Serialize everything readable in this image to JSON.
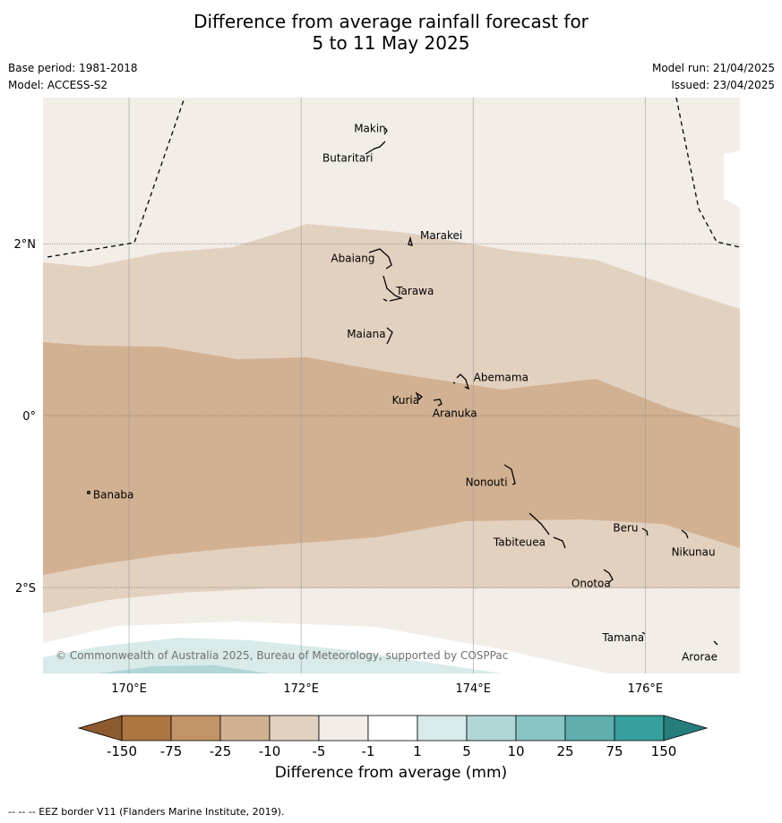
{
  "title": {
    "line1": "Difference from average rainfall forecast for",
    "line2": "5 to 11 May 2025"
  },
  "meta": {
    "base_period": "Base period: 1981-2018",
    "model": "Model: ACCESS-S2",
    "model_run": "Model run: 21/04/2025",
    "issued": "Issued: 23/04/2025"
  },
  "map": {
    "lon_range": [
      169.0,
      177.1
    ],
    "lat_range": [
      -3.0,
      3.7
    ],
    "lat_ticks": [
      {
        "value": 2,
        "label": "2°N"
      },
      {
        "value": 0,
        "label": "0°"
      },
      {
        "value": -2,
        "label": "2°S"
      }
    ],
    "lon_ticks": [
      {
        "value": 170,
        "label": "170°E"
      },
      {
        "value": 172,
        "label": "172°E"
      },
      {
        "value": 174,
        "label": "174°E"
      },
      {
        "value": 176,
        "label": "176°E"
      }
    ],
    "copyright": "© Commonwealth of Australia 2025, Bureau of Meteorology, supported by COSPPac",
    "places": [
      {
        "name": "Makin",
        "lon": 173.0,
        "lat": 3.35
      },
      {
        "name": "Butaritari",
        "lon": 172.8,
        "lat": 3.05
      },
      {
        "name": "Marakei",
        "lon": 173.3,
        "lat": 2.0
      },
      {
        "name": "Abaiang",
        "lon": 172.95,
        "lat": 1.8
      },
      {
        "name": "Tarawa",
        "lon": 173.0,
        "lat": 1.45
      },
      {
        "name": "Maiana",
        "lon": 173.0,
        "lat": 0.95
      },
      {
        "name": "Abemama",
        "lon": 173.9,
        "lat": 0.4
      },
      {
        "name": "Kuria",
        "lon": 173.4,
        "lat": 0.23
      },
      {
        "name": "Aranuka",
        "lon": 173.6,
        "lat": 0.15
      },
      {
        "name": "Banaba",
        "lon": 169.53,
        "lat": -0.86
      },
      {
        "name": "Nonouti",
        "lon": 174.4,
        "lat": -0.7
      },
      {
        "name": "Tabiteuea",
        "lon": 174.85,
        "lat": -1.35
      },
      {
        "name": "Beru",
        "lon": 176.0,
        "lat": -1.33
      },
      {
        "name": "Nikunau",
        "lon": 176.45,
        "lat": -1.35
      },
      {
        "name": "Onotoa",
        "lon": 175.6,
        "lat": -1.85
      },
      {
        "name": "Tamana",
        "lon": 175.98,
        "lat": -2.5
      },
      {
        "name": "Arorae",
        "lon": 176.82,
        "lat": -2.63
      }
    ]
  },
  "colorbar": {
    "title": "Difference from average (mm)",
    "ticks": [
      "-150",
      "-75",
      "-25",
      "-10",
      "-5",
      "-1",
      "1",
      "5",
      "10",
      "25",
      "75",
      "150"
    ],
    "colors": [
      "#8c5a2e",
      "#ad7541",
      "#c29467",
      "#d2b192",
      "#e3d1c0",
      "#f3ede8",
      "#ffffff",
      "#d8eaea",
      "#b0d6d6",
      "#88c4c3",
      "#5eafae",
      "#36a09d",
      "#267e7c"
    ],
    "over_color": "#267e7c",
    "under_color": "#8c5a2e"
  },
  "footnote": "--  --  -- EEZ border V11 (Flanders Marine Institute, 2019)."
}
